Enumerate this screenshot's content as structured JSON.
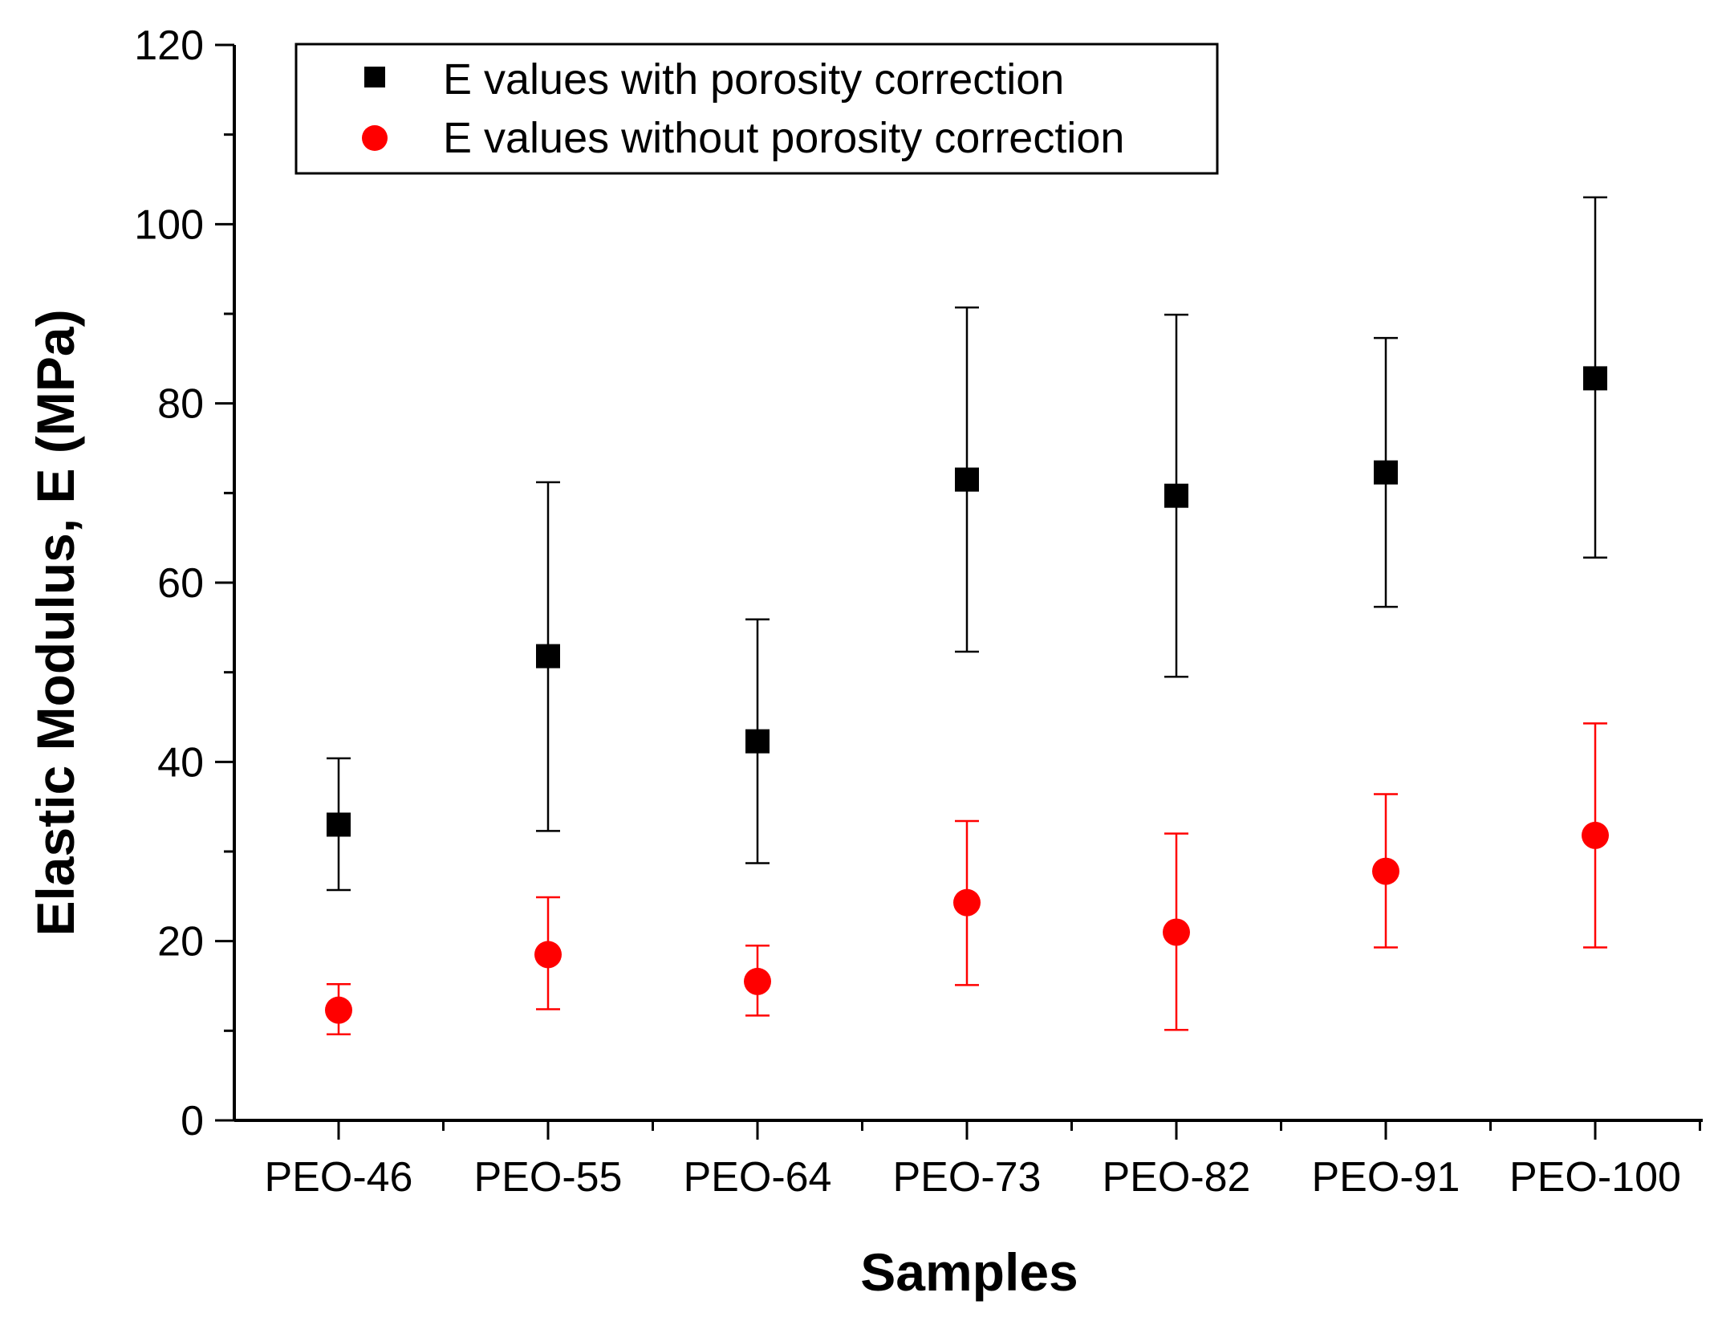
{
  "chart_data": {
    "type": "scatter",
    "title": "",
    "xlabel": "Samples",
    "ylabel": "Elastic Modulus, E (MPa)",
    "ylim": [
      0,
      120
    ],
    "yticks": [
      0,
      20,
      40,
      60,
      80,
      100,
      120
    ],
    "grid": false,
    "legend_position": "top-left",
    "categories": [
      "PEO-46",
      "PEO-55",
      "PEO-64",
      "PEO-73",
      "PEO-82",
      "PEO-91",
      "PEO-100"
    ],
    "series": [
      {
        "name": "E values with porosity correction",
        "marker": "square",
        "color": "#000000",
        "values": [
          33.0,
          51.8,
          42.3,
          71.5,
          69.7,
          72.3,
          82.8
        ],
        "error_low": [
          25.7,
          32.3,
          28.7,
          52.3,
          49.5,
          57.3,
          62.8
        ],
        "error_high": [
          40.4,
          71.2,
          55.9,
          90.7,
          89.9,
          87.3,
          103.0
        ]
      },
      {
        "name": "E values without porosity correction",
        "marker": "circle",
        "color": "#ff0000",
        "values": [
          12.3,
          18.5,
          15.5,
          24.3,
          21.0,
          27.8,
          31.8
        ],
        "error_low": [
          9.6,
          12.4,
          11.7,
          15.1,
          10.1,
          19.3,
          19.3
        ],
        "error_high": [
          15.2,
          24.9,
          19.5,
          33.4,
          32.0,
          36.4,
          44.3
        ]
      }
    ]
  }
}
